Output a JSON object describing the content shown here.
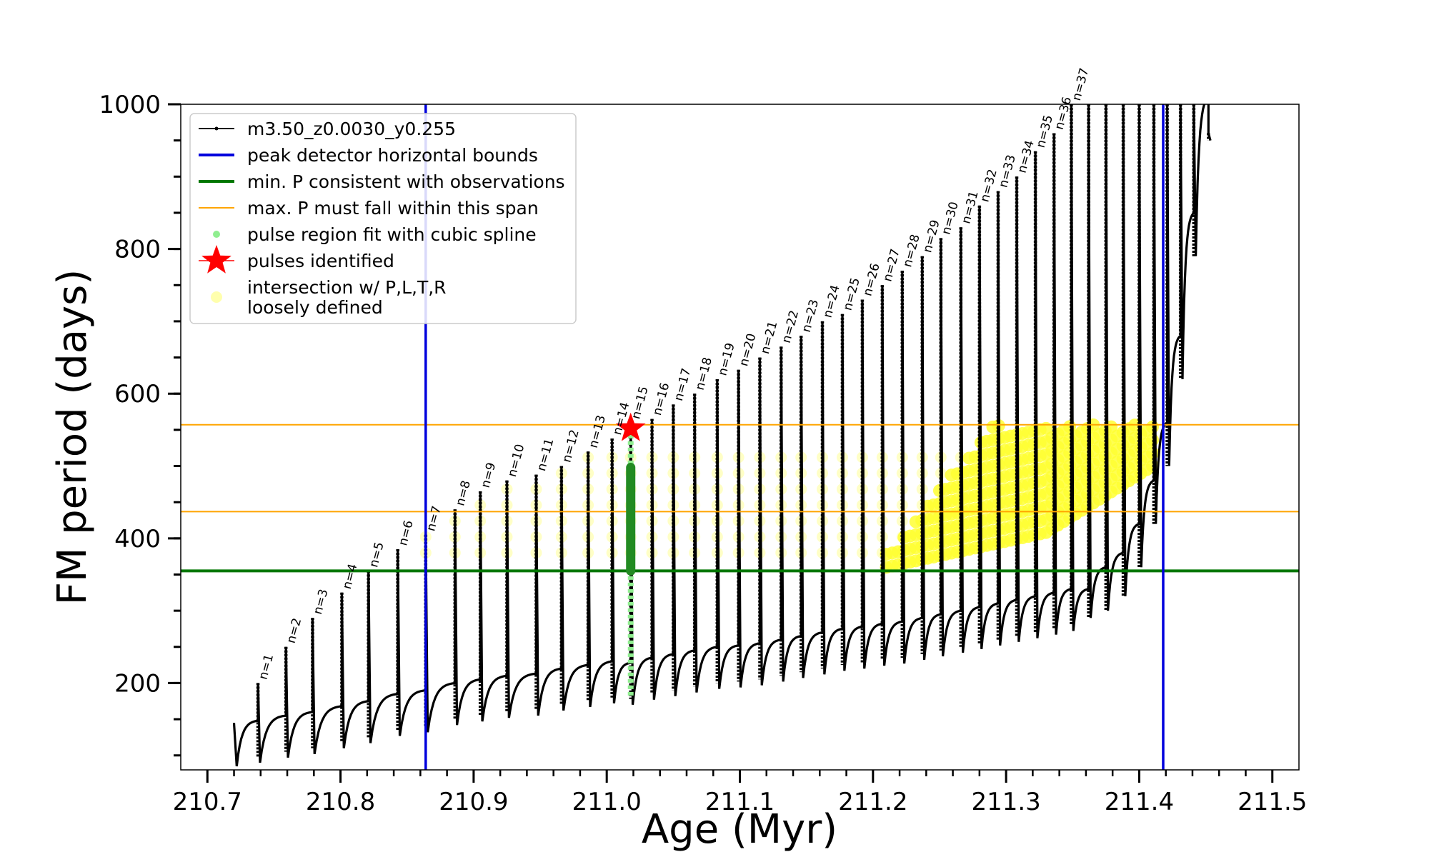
{
  "chart_data": {
    "type": "scatter",
    "xlabel": "Age (Myr)",
    "ylabel": "FM period (days)",
    "xlim": [
      210.68,
      211.52
    ],
    "ylim": [
      80,
      1000
    ],
    "xticks": [
      "210.7",
      "210.8",
      "210.9",
      "211.0",
      "211.1",
      "211.2",
      "211.3",
      "211.4",
      "211.5"
    ],
    "yticks": [
      "200",
      "400",
      "600",
      "800",
      "1000"
    ],
    "grid": false,
    "legend_position": "upper-left",
    "colors": {
      "track": "#000000",
      "blue_bounds": "#0000dd",
      "green_min": "#007700",
      "orange_span": "#ffa500",
      "spline": "#90ee90",
      "spline_dark": "#228b22",
      "star": "#ff0000",
      "intersection": "#ffff33"
    },
    "legend": [
      {
        "label": "m3.50_z0.0030_y0.255",
        "marker": "line-dot"
      },
      {
        "label": "peak detector horizontal bounds",
        "marker": "blue-line"
      },
      {
        "label": "min. P consistent with observations",
        "marker": "green-line"
      },
      {
        "label": "max. P must fall within this span",
        "marker": "orange-line"
      },
      {
        "label": "pulse region fit with cubic spline",
        "marker": "green-dot"
      },
      {
        "label": "pulses identified",
        "marker": "red-star"
      },
      {
        "label": "intersection w/ P,L,T,R",
        "marker": "yellow-dot"
      },
      {
        "label": "loosely defined",
        "marker": "none"
      }
    ],
    "vertical_lines": {
      "blue": [
        210.864,
        211.418
      ]
    },
    "horizontal_lines": {
      "green_min_P": 355,
      "orange_span": [
        437,
        557
      ]
    },
    "star_point": {
      "x": 211.018,
      "y": 552
    },
    "pulse_labels": [
      "n=1",
      "n=2",
      "n=3",
      "n=4",
      "n=5",
      "n=6",
      "n=7",
      "n=8",
      "n=9",
      "n=10",
      "n=11",
      "n=12",
      "n=13",
      "n=14",
      "n=15",
      "n=16",
      "n=17",
      "n=18",
      "n=19",
      "n=20",
      "n=21",
      "n=22",
      "n=23",
      "n=24",
      "n=25",
      "n=26",
      "n=27",
      "n=28",
      "n=29",
      "n=30",
      "n=31",
      "n=32",
      "n=33",
      "n=34",
      "n=35",
      "n=36",
      "n=37"
    ],
    "pulses": {
      "x": [
        210.738,
        210.759,
        210.779,
        210.801,
        210.821,
        210.843,
        210.864,
        210.886,
        210.905,
        210.925,
        210.947,
        210.966,
        210.986,
        211.004,
        211.018,
        211.034,
        211.05,
        211.066,
        211.083,
        211.099,
        211.115,
        211.131,
        211.146,
        211.162,
        211.177,
        211.192,
        211.207,
        211.222,
        211.237,
        211.251,
        211.266,
        211.28,
        211.294,
        211.308,
        211.322,
        211.336,
        211.349
      ],
      "peak": [
        200,
        250,
        290,
        325,
        355,
        385,
        405,
        440,
        465,
        480,
        488,
        500,
        520,
        538,
        560,
        565,
        585,
        600,
        620,
        633,
        650,
        665,
        680,
        700,
        710,
        730,
        750,
        770,
        790,
        815,
        830,
        860,
        880,
        900,
        935,
        960,
        1000
      ],
      "base": [
        98,
        105,
        110,
        118,
        125,
        135,
        140,
        150,
        155,
        160,
        163,
        170,
        175,
        180,
        178,
        185,
        190,
        195,
        200,
        202,
        205,
        210,
        215,
        220,
        225,
        228,
        232,
        235,
        240,
        245,
        250,
        255,
        260,
        265,
        270,
        275,
        280
      ]
    },
    "track_start": {
      "x": 210.72,
      "y": 145,
      "min": 85
    },
    "track_end_pulses": [
      {
        "x": 211.362,
        "peak": 1000,
        "base": 290
      },
      {
        "x": 211.375,
        "peak": 1000,
        "base": 300
      },
      {
        "x": 211.388,
        "peak": 1000,
        "base": 320
      },
      {
        "x": 211.4,
        "peak": 1000,
        "base": 360
      },
      {
        "x": 211.411,
        "peak": 1000,
        "base": 420
      },
      {
        "x": 211.421,
        "peak": 1000,
        "base": 500
      },
      {
        "x": 211.431,
        "peak": 1000,
        "base": 620
      },
      {
        "x": 211.441,
        "peak": 1000,
        "base": 790
      },
      {
        "x": 211.452,
        "peak": 960,
        "base": 950
      }
    ]
  }
}
